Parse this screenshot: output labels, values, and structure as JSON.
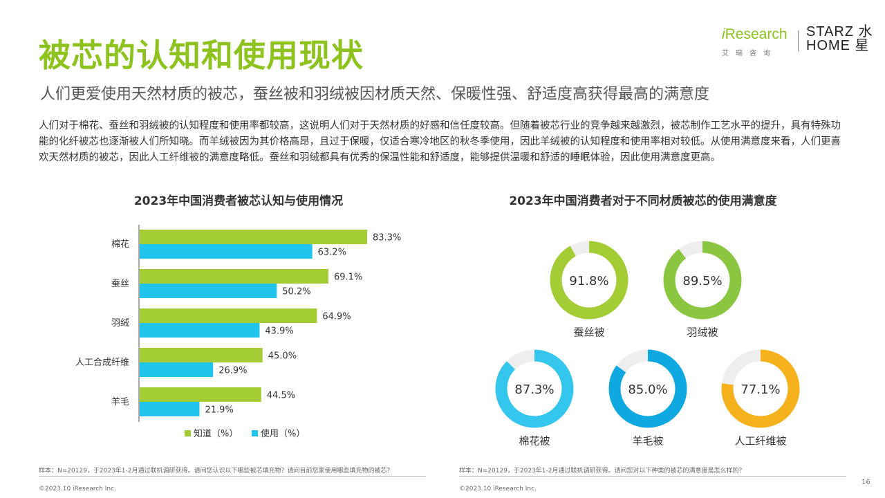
{
  "header": {
    "title": "被芯的认知和使用现状",
    "subtitle": "人们更爱使用天然材质的被芯，蚕丝被和羽绒被因材质天然、保暖性强、舒适度高获得最高的满意度"
  },
  "logos": {
    "iresearch_word": "Research",
    "iresearch_i": "i",
    "iresearch_cn": "艾瑞咨询",
    "starz_line1": "STARZ 水",
    "starz_line2": "HOME 星"
  },
  "description": "人们对于棉花、蚕丝和羽绒被的认知程度和使用率都较高，这说明人们对于天然材质的好感和信任度较高。但随着被芯行业的竞争越来越激烈，被芯制作工艺水平的提升，具有特殊功能的化纤被芯也逐渐被人们所知晓。而羊绒被因为其价格高昂，且过于保暖，仅适合寒冷地区的秋冬季使用，因此羊绒被的认知程度和使用率相对较低。从使用满意度来看，人们更喜欢天然材质的被芯，因此人工纤维被的满意度略低。蚕丝和羽绒都具有优秀的保温性能和舒适度，能够提供温暖和舒适的睡眠体验，因此使用满意度更高。",
  "chart_data": [
    {
      "type": "bar",
      "orientation": "horizontal",
      "title": "2023年中国消费者被芯认知与使用情况",
      "categories": [
        "棉花",
        "蚕丝",
        "羽绒",
        "人工合成纤维",
        "羊毛"
      ],
      "series": [
        {
          "name": "知道（%）",
          "values": [
            83.3,
            69.1,
            64.9,
            45.0,
            44.5
          ],
          "labels": [
            "83.3%",
            "69.1%",
            "64.9%",
            "45.0%",
            "44.5%"
          ],
          "color": "#a4cc35"
        },
        {
          "name": "使用（%）",
          "values": [
            63.2,
            50.2,
            43.9,
            26.9,
            21.9
          ],
          "labels": [
            "63.2%",
            "50.2%",
            "43.9%",
            "26.9%",
            "21.9%"
          ],
          "color": "#20c4ec"
        }
      ],
      "xlim": [
        0,
        100
      ],
      "legend": "bottom",
      "grid": false
    },
    {
      "type": "pie",
      "style": "donut",
      "title": "2023年中国消费者对于不同材质被芯的使用满意度",
      "items": [
        {
          "name": "蚕丝被",
          "value": 91.8,
          "label": "91.8%",
          "color": "#a4cc35"
        },
        {
          "name": "羽绒被",
          "value": 89.5,
          "label": "89.5%",
          "color": "#8bc640"
        },
        {
          "name": "棉花被",
          "value": 87.3,
          "label": "87.3%",
          "color": "#35c6ee"
        },
        {
          "name": "羊毛被",
          "value": 85.0,
          "label": "85.0%",
          "color": "#0fa8e0"
        },
        {
          "name": "人工纤维被",
          "value": 77.1,
          "label": "77.1%",
          "color": "#f6b21c"
        }
      ],
      "track_color": "#eeeeee"
    }
  ],
  "notes": {
    "left": "样本：N=20129，于2023年1-2月通过联机调研获得。请问您认识以下哪些被芯填充物？请问目前您家使用哪些填充物的被芯？",
    "right": "样本：N=20129，于2023年1-2月通过联机调研获得。请问您对以下种类的被芯的满意度是怎么样的？",
    "copyright_left": "©2023.10 iResearch Inc.",
    "copyright_right": "©2023.10 iResearch Inc.",
    "page_number": "16"
  }
}
